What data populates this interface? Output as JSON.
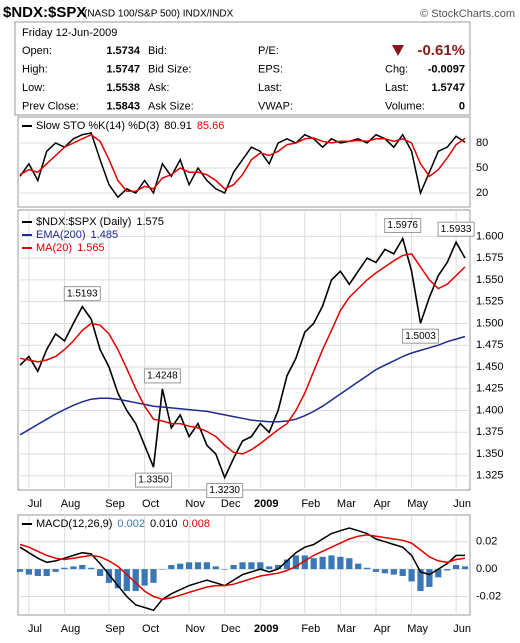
{
  "header": {
    "symbol": "$NDX:$SPX",
    "name": "(NASD 100/S&P 500) INDX/INDX",
    "source": "© StockCharts.com",
    "date": "Friday  12-Jun-2009",
    "rows": [
      [
        [
          "Open:",
          "1.5734"
        ],
        [
          "Bid:"
        ],
        [
          "P/E:"
        ],
        [
          "-0.61%"
        ]
      ],
      [
        [
          "High:",
          "1.5747"
        ],
        [
          "Bid Size:"
        ],
        [
          "EPS:"
        ],
        [
          "Chg:",
          "-0.0097"
        ]
      ],
      [
        [
          "Low:",
          "1.5538"
        ],
        [
          "Ask:"
        ],
        [
          "Last:"
        ],
        [
          "Last:",
          "1.5747"
        ]
      ],
      [
        [
          "Prev Close:",
          "1.5843"
        ],
        [
          "Ask Size:"
        ],
        [
          "VWAP:"
        ],
        [
          "Volume:",
          "0"
        ]
      ]
    ]
  },
  "chart_data": [
    {
      "type": "line",
      "title": "Slow STO %K(14) %D(3)",
      "ylim": [
        8,
        98
      ],
      "yticks": [
        20,
        50,
        80
      ],
      "grid": true,
      "series": [
        {
          "color": "#000000",
          "values": [
            40,
            55,
            35,
            70,
            80,
            75,
            85,
            90,
            92,
            60,
            30,
            15,
            25,
            20,
            35,
            20,
            55,
            40,
            60,
            30,
            50,
            35,
            25,
            20,
            45,
            60,
            75,
            70,
            55,
            80,
            85,
            80,
            90,
            85,
            75,
            85,
            80,
            82,
            85,
            80,
            90,
            85,
            75,
            90,
            70,
            20,
            45,
            70,
            75,
            88,
            80.91
          ]
        },
        {
          "color": "#e00000",
          "values": [
            42,
            48,
            45,
            55,
            65,
            75,
            80,
            85,
            90,
            82,
            60,
            35,
            22,
            22,
            28,
            25,
            38,
            42,
            50,
            45,
            45,
            42,
            35,
            25,
            30,
            42,
            60,
            68,
            65,
            70,
            78,
            80,
            85,
            86,
            82,
            80,
            82,
            82,
            83,
            82,
            85,
            85,
            82,
            85,
            80,
            55,
            40,
            48,
            62,
            78,
            85.66
          ]
        }
      ]
    },
    {
      "type": "line",
      "ylim": [
        1.311,
        1.628
      ],
      "grid": true,
      "yticks": [
        1.325,
        {
          "value": 1.35,
          "label": "1.350"
        },
        1.375,
        {
          "value": 1.4,
          "label": "1.400"
        },
        1.425,
        {
          "value": 1.45,
          "label": "1.450"
        },
        1.475,
        {
          "value": 1.5,
          "label": "1.500"
        },
        1.525,
        {
          "value": 1.55,
          "label": "1.550"
        },
        1.575,
        {
          "value": 1.6,
          "label": "1.600"
        }
      ],
      "categories": [
        null,
        "Jul",
        null,
        null,
        null,
        "Aug",
        null,
        null,
        null,
        null,
        "Sep",
        null,
        null,
        null,
        "Oct",
        null,
        null,
        null,
        null,
        "Nov",
        null,
        null,
        null,
        "Dec",
        null,
        null,
        null,
        "2009",
        null,
        null,
        null,
        null,
        "Feb",
        null,
        null,
        null,
        "Mar",
        null,
        null,
        null,
        "Apr",
        null,
        null,
        null,
        "May",
        null,
        null,
        null,
        null,
        "Jun",
        null
      ],
      "series": [
        {
          "name": "$NDX:$SPX (Daily)",
          "color": "#000000",
          "values": [
            1.452,
            1.462,
            1.445,
            1.47,
            1.488,
            1.48,
            1.5,
            1.5193,
            1.505,
            1.47,
            1.45,
            1.42,
            1.4,
            1.385,
            1.36,
            1.335,
            1.4248,
            1.38,
            1.395,
            1.37,
            1.385,
            1.36,
            1.35,
            1.323,
            1.345,
            1.365,
            1.37,
            1.385,
            1.375,
            1.4,
            1.44,
            1.46,
            1.49,
            1.5,
            1.52,
            1.55,
            1.56,
            1.545,
            1.56,
            1.575,
            1.57,
            1.585,
            1.58,
            1.5976,
            1.56,
            1.5003,
            1.53,
            1.555,
            1.57,
            1.5933,
            1.575
          ],
          "value_labels": [
            null,
            null,
            null,
            null,
            null,
            null,
            null,
            "1.5193",
            null,
            null,
            null,
            null,
            null,
            null,
            null,
            "1.3350",
            "1.4248",
            null,
            null,
            null,
            null,
            null,
            null,
            "1.3230",
            null,
            null,
            null,
            null,
            null,
            null,
            null,
            null,
            null,
            null,
            null,
            null,
            null,
            null,
            null,
            null,
            null,
            null,
            null,
            "1.5976",
            null,
            "1.5003",
            null,
            null,
            null,
            "1.5933",
            null
          ]
        },
        {
          "name": "EMA(200)",
          "color": "#1c2a8c",
          "values": [
            1.372,
            1.378,
            1.384,
            1.39,
            1.396,
            1.401,
            1.406,
            1.41,
            1.413,
            1.414,
            1.414,
            1.413,
            1.411,
            1.409,
            1.407,
            1.405,
            1.404,
            1.403,
            1.402,
            1.401,
            1.4,
            1.399,
            1.397,
            1.395,
            1.393,
            1.391,
            1.389,
            1.388,
            1.387,
            1.387,
            1.388,
            1.39,
            1.394,
            1.399,
            1.405,
            1.412,
            1.419,
            1.426,
            1.433,
            1.44,
            1.447,
            1.452,
            1.457,
            1.462,
            1.466,
            1.469,
            1.472,
            1.475,
            1.479,
            1.482,
            1.485
          ]
        },
        {
          "name": "MA(20)",
          "color": "#e00000",
          "values": [
            1.46,
            1.458,
            1.456,
            1.458,
            1.462,
            1.47,
            1.48,
            1.492,
            1.5,
            1.498,
            1.488,
            1.47,
            1.448,
            1.425,
            1.405,
            1.39,
            1.388,
            1.385,
            1.385,
            1.382,
            1.38,
            1.376,
            1.37,
            1.36,
            1.352,
            1.35,
            1.355,
            1.362,
            1.37,
            1.378,
            1.385,
            1.4,
            1.42,
            1.445,
            1.47,
            1.492,
            1.515,
            1.53,
            1.54,
            1.55,
            1.558,
            1.565,
            1.572,
            1.578,
            1.58,
            1.565,
            1.55,
            1.54,
            1.545,
            1.555,
            1.565
          ]
        }
      ]
    },
    {
      "type": "line",
      "title": "MACD(12,26,9)",
      "ylim": [
        -0.032,
        0.03
      ],
      "grid": true,
      "yticks": [
        -0.02,
        {
          "value": 0,
          "label": "0.00"
        },
        0.02
      ],
      "categories": [
        null,
        "Jul",
        null,
        null,
        null,
        "Aug",
        null,
        null,
        null,
        null,
        "Sep",
        null,
        null,
        null,
        "Oct",
        null,
        null,
        null,
        null,
        "Nov",
        null,
        null,
        null,
        "Dec",
        null,
        null,
        null,
        "2009",
        null,
        null,
        null,
        null,
        "Feb",
        null,
        null,
        null,
        "Mar",
        null,
        null,
        null,
        "Apr",
        null,
        null,
        null,
        "May",
        null,
        null,
        null,
        null,
        "Jun",
        null
      ],
      "series": [
        {
          "type": "bar",
          "color": "#3a78b5",
          "values": [
            -0.002,
            -0.004,
            -0.005,
            -0.005,
            -0.002,
            0.001,
            0.002,
            0.003,
            0.001,
            -0.005,
            -0.01,
            -0.014,
            -0.016,
            -0.016,
            -0.012,
            -0.01,
            0,
            0.003,
            0.004,
            0.005,
            0.005,
            0.005,
            0.002,
            0,
            0.003,
            0.005,
            0.005,
            0.005,
            0.002,
            0.003,
            0.007,
            0.01,
            0.01,
            0.008,
            0.009,
            0.01,
            0.009,
            0.008,
            0.004,
            0.001,
            -0.002,
            -0.003,
            -0.004,
            -0.005,
            -0.009,
            -0.016,
            -0.013,
            -0.006,
            -0.001,
            0.003,
            0.002
          ]
        },
        {
          "color": "#000000",
          "values": [
            0.016,
            0.012,
            0.008,
            0.005,
            0.006,
            0.008,
            0.01,
            0.012,
            0.011,
            0.004,
            -0.004,
            -0.012,
            -0.02,
            -0.026,
            -0.028,
            -0.03,
            -0.022,
            -0.018,
            -0.015,
            -0.012,
            -0.01,
            -0.008,
            -0.01,
            -0.012,
            -0.008,
            -0.004,
            -0.002,
            0,
            -0.002,
            0,
            0.006,
            0.012,
            0.016,
            0.018,
            0.022,
            0.026,
            0.028,
            0.03,
            0.028,
            0.026,
            0.022,
            0.02,
            0.018,
            0.016,
            0.01,
            -0.002,
            -0.004,
            0,
            0.004,
            0.01,
            0.01
          ],
          "value_labels": [
            null,
            null,
            null,
            null,
            null,
            null,
            null,
            null,
            null,
            null,
            null,
            null,
            null,
            null,
            null,
            null,
            null,
            null,
            null,
            null,
            null,
            null,
            null,
            null,
            null,
            null,
            null,
            null,
            null,
            null,
            null,
            null,
            null,
            null,
            null,
            null,
            null,
            null,
            null,
            null,
            null,
            null,
            null,
            null,
            null,
            null,
            null,
            null,
            null,
            null,
            "0.010"
          ]
        },
        {
          "color": "#e00000",
          "values": [
            0.018,
            0.016,
            0.013,
            0.01,
            0.008,
            0.007,
            0.008,
            0.009,
            0.01,
            0.009,
            0.006,
            0.002,
            -0.004,
            -0.01,
            -0.016,
            -0.02,
            -0.022,
            -0.021,
            -0.019,
            -0.017,
            -0.015,
            -0.013,
            -0.012,
            -0.012,
            -0.011,
            -0.009,
            -0.007,
            -0.005,
            -0.004,
            -0.003,
            -0.001,
            0.002,
            0.006,
            0.01,
            0.013,
            0.016,
            0.019,
            0.022,
            0.024,
            0.025,
            0.024,
            0.023,
            0.022,
            0.021,
            0.019,
            0.014,
            0.009,
            0.006,
            0.005,
            0.007,
            0.008
          ]
        }
      ]
    }
  ]
}
